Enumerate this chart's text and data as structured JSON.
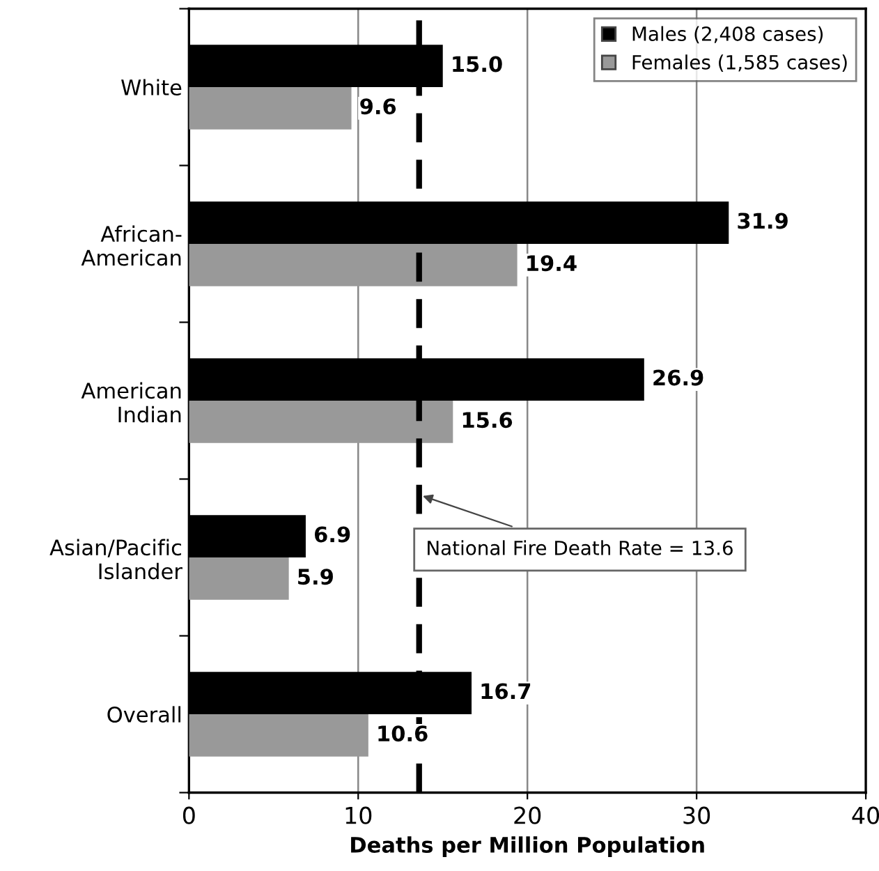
{
  "chart_data": {
    "type": "bar",
    "orientation": "horizontal",
    "categories": [
      "White",
      "African-\nAmerican",
      "American\nIndian",
      "Asian/Pacific\nIslander",
      "Overall"
    ],
    "series": [
      {
        "name": "Males (2,408 cases)",
        "color": "#000000",
        "values": [
          15.0,
          31.9,
          26.9,
          6.9,
          16.7
        ],
        "value_labels": [
          "15.0",
          "31.9",
          "26.9",
          "6.9",
          "16.7"
        ]
      },
      {
        "name": "Females (1,585 cases)",
        "color": "#999999",
        "values": [
          9.6,
          19.4,
          15.6,
          5.9,
          10.6
        ],
        "value_labels": [
          "9.6",
          "19.4",
          "15.6",
          "5.9",
          "10.6"
        ]
      }
    ],
    "xlabel": "Deaths per Million Population",
    "xlim": [
      0,
      40
    ],
    "xticks": [
      0,
      10,
      20,
      30,
      40
    ],
    "grid": "x",
    "legend": "top right",
    "ref_lines": [
      {
        "axis": "x",
        "value": 13.6,
        "label": "National Fire Death Rate = 13.6",
        "color": "#000000",
        "line_style": "dashed"
      }
    ]
  }
}
